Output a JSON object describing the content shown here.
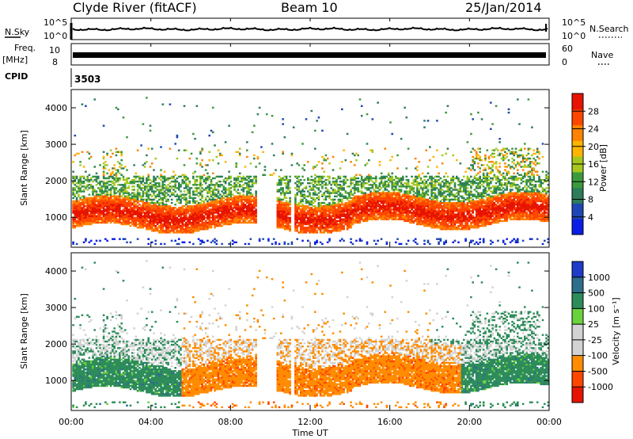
{
  "header": {
    "station": "Clyde River (fitACF)",
    "beam": "Beam 10",
    "date": "25/Jan/2014"
  },
  "panels": {
    "nsky": {
      "label": "N.Sky",
      "ticks": [
        "10^5",
        "10^0"
      ],
      "right_label": "N.Search",
      "right_ticks": [
        "10^5",
        "10^0"
      ]
    },
    "freq": {
      "label_line1": "Freq.",
      "label_line2": "[MHz]",
      "ticks": [
        "10",
        "8"
      ],
      "right_label": "Nave",
      "right_ticks": [
        "60",
        "0"
      ]
    },
    "cpid": {
      "label": "CPID",
      "value": "3503"
    }
  },
  "colors": {
    "power": [
      "#0a1ee6",
      "#1e46b4",
      "#2d7d5a",
      "#3c9a3c",
      "#a6c81e",
      "#ffb400",
      "#ff8200",
      "#ff4600",
      "#e61400"
    ],
    "velocity": [
      "#e61400",
      "#ff4600",
      "#ff8c00",
      "#d2d2d2",
      "#d2d2d2",
      "#6ad23c",
      "#2d8c5a",
      "#2d6e8c",
      "#1e3cc8"
    ]
  },
  "chart_data": [
    {
      "type": "heatmap",
      "title": "",
      "xlabel": "Time UT",
      "ylabel": "Slant Range [km]",
      "colorbar_label": "Power [dB]",
      "x_ticks": [
        "00:00",
        "04:00",
        "08:00",
        "12:00",
        "16:00",
        "20:00",
        "00:00"
      ],
      "y_ticks": [
        "1000",
        "2000",
        "3000",
        "4000"
      ],
      "xlim_hours": [
        0,
        24
      ],
      "ylim_km": [
        180,
        4500
      ],
      "colorbar_ticks": [
        "4",
        "8",
        "12",
        "16",
        "20",
        "24",
        "28"
      ],
      "colorbar_range": [
        0,
        32
      ]
    },
    {
      "type": "heatmap",
      "title": "",
      "xlabel": "Time UT",
      "ylabel": "Slant Range [km]",
      "colorbar_label": "Velocity [m s⁻¹]",
      "x_ticks": [
        "00:00",
        "04:00",
        "08:00",
        "12:00",
        "16:00",
        "20:00",
        "00:00"
      ],
      "y_ticks": [
        "1000",
        "2000",
        "3000",
        "4000"
      ],
      "xlim_hours": [
        0,
        24
      ],
      "ylim_km": [
        180,
        4500
      ],
      "colorbar_ticks": [
        "1000",
        "500",
        "100",
        "25",
        "-25",
        "-100",
        "-500",
        "-1000"
      ]
    }
  ]
}
